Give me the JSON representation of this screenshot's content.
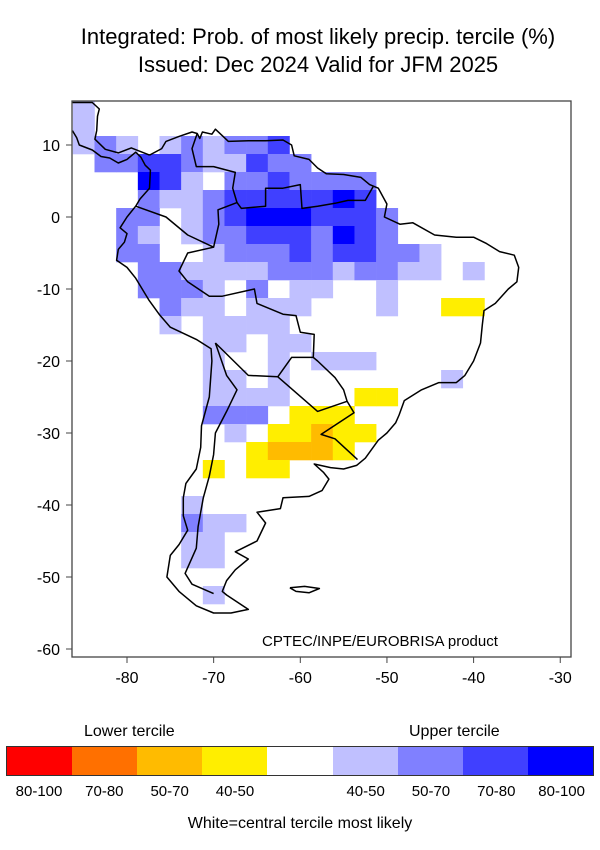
{
  "title": {
    "line1": "Integrated: Prob. of most likely precip. tercile (%)",
    "line2": "Issued: Dec 2024      Valid for JFM 2025"
  },
  "credit": "CPTEC/INPE/EUROBRISA product",
  "axes": {
    "lon_ticks": [
      "-80",
      "-70",
      "-60",
      "-50",
      "-40",
      "-30"
    ],
    "lon_values": [
      -80,
      -70,
      -60,
      -50,
      -40,
      -30
    ],
    "lat_ticks": [
      "10",
      "0",
      "-10",
      "-20",
      "-30",
      "-40",
      "-50",
      "-60"
    ],
    "lat_values": [
      10,
      0,
      -10,
      -20,
      -30,
      -40,
      -50,
      -60
    ]
  },
  "legend": {
    "lower_heading": "Lower tercile",
    "upper_heading": "Upper tercile",
    "items": [
      {
        "code": "L4",
        "label": "80-100",
        "color": "#ff0000"
      },
      {
        "code": "L3",
        "label": "70-80",
        "color": "#ff7000"
      },
      {
        "code": "L2",
        "label": "50-70",
        "color": "#ffbb00"
      },
      {
        "code": "L1",
        "label": "40-50",
        "color": "#ffee00"
      },
      {
        "code": "C",
        "label": "",
        "color": "#ffffff"
      },
      {
        "code": "U1",
        "label": "40-50",
        "color": "#c0c0ff"
      },
      {
        "code": "U2",
        "label": "50-70",
        "color": "#8080ff"
      },
      {
        "code": "U3",
        "label": "70-80",
        "color": "#4040ff"
      },
      {
        "code": "U4",
        "label": "80-100",
        "color": "#0000ff"
      }
    ],
    "footer": "White=central tercile most likely"
  },
  "grid_resolution_deg": 2.5,
  "grid_cells": [
    [
      -85,
      15,
      "U1"
    ],
    [
      -85,
      12.5,
      "U1"
    ],
    [
      -85,
      10,
      "U1"
    ],
    [
      -82.5,
      10,
      "U2"
    ],
    [
      -80,
      10,
      "U1"
    ],
    [
      -75,
      10,
      "U1"
    ],
    [
      -72.5,
      10,
      "U2"
    ],
    [
      -70,
      10,
      "U1"
    ],
    [
      -67.5,
      10,
      "U2"
    ],
    [
      -65,
      10,
      "U2"
    ],
    [
      -62.5,
      10,
      "U3"
    ],
    [
      -82.5,
      7.5,
      "U2"
    ],
    [
      -80,
      7.5,
      "U2"
    ],
    [
      -77.5,
      7.5,
      "U3"
    ],
    [
      -75,
      7.5,
      "U3"
    ],
    [
      -72.5,
      7.5,
      "U2"
    ],
    [
      -70,
      7.5,
      "U1"
    ],
    [
      -67.5,
      7.5,
      "U1"
    ],
    [
      -65,
      7.5,
      "U3"
    ],
    [
      -62.5,
      7.5,
      "U2"
    ],
    [
      -60,
      7.5,
      "U2"
    ],
    [
      -77.5,
      5,
      "U4"
    ],
    [
      -75,
      5,
      "U3"
    ],
    [
      -72.5,
      5,
      "U1"
    ],
    [
      -67.5,
      5,
      "U2"
    ],
    [
      -65,
      5,
      "U2"
    ],
    [
      -62.5,
      5,
      "U3"
    ],
    [
      -60,
      5,
      "U2"
    ],
    [
      -57.5,
      5,
      "U2"
    ],
    [
      -55,
      5,
      "U2"
    ],
    [
      -52.5,
      5,
      "U2"
    ],
    [
      -77.5,
      2.5,
      "U2"
    ],
    [
      -75,
      2.5,
      "U1"
    ],
    [
      -72.5,
      2.5,
      "U1"
    ],
    [
      -70,
      2.5,
      "U2"
    ],
    [
      -67.5,
      2.5,
      "U3"
    ],
    [
      -65,
      2.5,
      "U3"
    ],
    [
      -62.5,
      2.5,
      "U3"
    ],
    [
      -60,
      2.5,
      "U3"
    ],
    [
      -57.5,
      2.5,
      "U3"
    ],
    [
      -55,
      2.5,
      "U4"
    ],
    [
      -52.5,
      2.5,
      "U3"
    ],
    [
      -80,
      0,
      "U2"
    ],
    [
      -77.5,
      0,
      "U2"
    ],
    [
      -72.5,
      0,
      "U1"
    ],
    [
      -70,
      0,
      "U2"
    ],
    [
      -67.5,
      0,
      "U3"
    ],
    [
      -65,
      0,
      "U4"
    ],
    [
      -62.5,
      0,
      "U4"
    ],
    [
      -60,
      0,
      "U4"
    ],
    [
      -57.5,
      0,
      "U3"
    ],
    [
      -55,
      0,
      "U3"
    ],
    [
      -52.5,
      0,
      "U3"
    ],
    [
      -50,
      0,
      "U2"
    ],
    [
      -80,
      -2.5,
      "U2"
    ],
    [
      -77.5,
      -2.5,
      "U1"
    ],
    [
      -72.5,
      -2.5,
      "U1"
    ],
    [
      -70,
      -2.5,
      "U2"
    ],
    [
      -67.5,
      -2.5,
      "U2"
    ],
    [
      -65,
      -2.5,
      "U3"
    ],
    [
      -62.5,
      -2.5,
      "U3"
    ],
    [
      -60,
      -2.5,
      "U3"
    ],
    [
      -57.5,
      -2.5,
      "U2"
    ],
    [
      -55,
      -2.5,
      "U4"
    ],
    [
      -52.5,
      -2.5,
      "U3"
    ],
    [
      -50,
      -2.5,
      "U2"
    ],
    [
      -80,
      -5,
      "U2"
    ],
    [
      -77.5,
      -5,
      "U2"
    ],
    [
      -70,
      -5,
      "U1"
    ],
    [
      -67.5,
      -5,
      "U2"
    ],
    [
      -65,
      -5,
      "U2"
    ],
    [
      -62.5,
      -5,
      "U2"
    ],
    [
      -60,
      -5,
      "U3"
    ],
    [
      -57.5,
      -5,
      "U2"
    ],
    [
      -55,
      -5,
      "U3"
    ],
    [
      -52.5,
      -5,
      "U3"
    ],
    [
      -50,
      -5,
      "U2"
    ],
    [
      -47.5,
      -5,
      "U2"
    ],
    [
      -45,
      -5,
      "U1"
    ],
    [
      -77.5,
      -7.5,
      "U2"
    ],
    [
      -75,
      -7.5,
      "U2"
    ],
    [
      -72.5,
      -7.5,
      "U1"
    ],
    [
      -70,
      -7.5,
      "U1"
    ],
    [
      -67.5,
      -7.5,
      "U1"
    ],
    [
      -65,
      -7.5,
      "U1"
    ],
    [
      -62.5,
      -7.5,
      "U2"
    ],
    [
      -60,
      -7.5,
      "U2"
    ],
    [
      -57.5,
      -7.5,
      "U2"
    ],
    [
      -55,
      -7.5,
      "U1"
    ],
    [
      -52.5,
      -7.5,
      "U2"
    ],
    [
      -50,
      -7.5,
      "U2"
    ],
    [
      -47.5,
      -7.5,
      "U1"
    ],
    [
      -45,
      -7.5,
      "U1"
    ],
    [
      -40,
      -7.5,
      "U1"
    ],
    [
      -77.5,
      -10,
      "U2"
    ],
    [
      -75,
      -10,
      "U2"
    ],
    [
      -72.5,
      -10,
      "U2"
    ],
    [
      -70,
      -10,
      "U1"
    ],
    [
      -65,
      -10,
      "U2"
    ],
    [
      -60,
      -10,
      "U1"
    ],
    [
      -57.5,
      -10,
      "U1"
    ],
    [
      -50,
      -10,
      "U1"
    ],
    [
      -75,
      -12.5,
      "U2"
    ],
    [
      -72.5,
      -12.5,
      "U1"
    ],
    [
      -70,
      -12.5,
      "U1"
    ],
    [
      -65,
      -12.5,
      "U1"
    ],
    [
      -62.5,
      -12.5,
      "U1"
    ],
    [
      -60,
      -12.5,
      "U1"
    ],
    [
      -50,
      -12.5,
      "U1"
    ],
    [
      -42.5,
      -12.5,
      "L1"
    ],
    [
      -40,
      -12.5,
      "L1"
    ],
    [
      -75,
      -15,
      "U1"
    ],
    [
      -70,
      -15,
      "U1"
    ],
    [
      -67.5,
      -15,
      "U1"
    ],
    [
      -65,
      -15,
      "U1"
    ],
    [
      -62.5,
      -15,
      "U1"
    ],
    [
      -70,
      -17.5,
      "U1"
    ],
    [
      -67.5,
      -17.5,
      "U1"
    ],
    [
      -62.5,
      -17.5,
      "U1"
    ],
    [
      -60,
      -17.5,
      "U1"
    ],
    [
      -70,
      -20,
      "U1"
    ],
    [
      -62.5,
      -20,
      "U1"
    ],
    [
      -57.5,
      -20,
      "U1"
    ],
    [
      -55,
      -20,
      "U1"
    ],
    [
      -52.5,
      -20,
      "U1"
    ],
    [
      -70,
      -22.5,
      "U1"
    ],
    [
      -67.5,
      -22.5,
      "U1"
    ],
    [
      -62.5,
      -22.5,
      "U1"
    ],
    [
      -42.5,
      -22.5,
      "U1"
    ],
    [
      -70,
      -25,
      "U1"
    ],
    [
      -67.5,
      -25,
      "U1"
    ],
    [
      -65,
      -25,
      "U1"
    ],
    [
      -62.5,
      -25,
      "U1"
    ],
    [
      -52.5,
      -25,
      "L1"
    ],
    [
      -50,
      -25,
      "L1"
    ],
    [
      -70,
      -27.5,
      "U2"
    ],
    [
      -67.5,
      -27.5,
      "U2"
    ],
    [
      -65,
      -27.5,
      "U2"
    ],
    [
      -60,
      -27.5,
      "L1"
    ],
    [
      -57.5,
      -27.5,
      "L1"
    ],
    [
      -55,
      -27.5,
      "L1"
    ],
    [
      -67.5,
      -30,
      "U1"
    ],
    [
      -62.5,
      -30,
      "L1"
    ],
    [
      -60,
      -30,
      "L1"
    ],
    [
      -57.5,
      -30,
      "L2"
    ],
    [
      -55,
      -30,
      "L1"
    ],
    [
      -52.5,
      -30,
      "L1"
    ],
    [
      -65,
      -32.5,
      "L1"
    ],
    [
      -62.5,
      -32.5,
      "L2"
    ],
    [
      -60,
      -32.5,
      "L2"
    ],
    [
      -57.5,
      -32.5,
      "L2"
    ],
    [
      -55,
      -32.5,
      "L1"
    ],
    [
      -70,
      -35,
      "L1"
    ],
    [
      -65,
      -35,
      "L1"
    ],
    [
      -62.5,
      -35,
      "L1"
    ],
    [
      -72.5,
      -40,
      "U1"
    ],
    [
      -72.5,
      -42.5,
      "U2"
    ],
    [
      -70,
      -42.5,
      "U1"
    ],
    [
      -67.5,
      -42.5,
      "U1"
    ],
    [
      -72.5,
      -45,
      "U1"
    ],
    [
      -70,
      -45,
      "U1"
    ],
    [
      -72.5,
      -47.5,
      "U1"
    ],
    [
      -70,
      -47.5,
      "U1"
    ],
    [
      -70,
      -52.5,
      "U1"
    ]
  ]
}
